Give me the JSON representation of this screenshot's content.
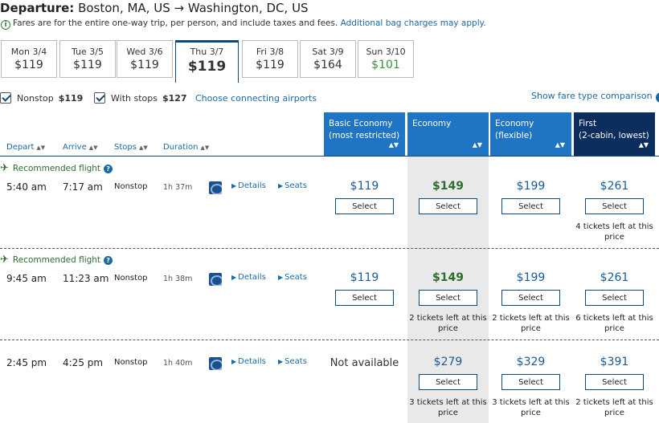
{
  "header": {
    "label": "Departure:",
    "route": "Boston, MA, US → Washington, DC, US",
    "note": "Fares are for the entire one-way trip, per person, and include taxes and fees.",
    "note_link": "Additional bag charges may apply."
  },
  "dates": [
    {
      "day": "Mon 3/4",
      "price": "$119"
    },
    {
      "day": "Tue 3/5",
      "price": "$119"
    },
    {
      "day": "Wed 3/6",
      "price": "$119"
    },
    {
      "day": "Thu 3/7",
      "price": "$119"
    },
    {
      "day": "Fri 3/8",
      "price": "$119"
    },
    {
      "day": "Sat 3/9",
      "price": "$164"
    },
    {
      "day": "Sun 3/10",
      "price": "$101"
    }
  ],
  "filters": {
    "nonstop_label": "Nonstop",
    "nonstop_price": "$119",
    "withstops_label": "With stops",
    "withstops_price": "$127",
    "connecting_link": "Choose connecting airports",
    "compare_link": "Show fare type comparison"
  },
  "columns": {
    "depart": "Depart",
    "arrive": "Arrive",
    "stops": "Stops",
    "duration": "Duration"
  },
  "fares": [
    {
      "line1": "Basic Economy",
      "line2": "(most restricted)"
    },
    {
      "line1": "Economy",
      "line2": ""
    },
    {
      "line1": "Economy",
      "line2": "(flexible)"
    },
    {
      "line1": "First",
      "line2": "(2-cabin, lowest)"
    }
  ],
  "recommended_label": "Recommended flight",
  "details_label": "Details",
  "seats_label": "Seats",
  "select_label": "Select",
  "flights": [
    {
      "depart": "5:40 am",
      "arrive": "7:17 am",
      "stops": "Nonstop",
      "duration": "1h 37m",
      "basic": "$119",
      "economy": "$149",
      "flexible": "$199",
      "first": "$261",
      "first_left_1": "4 tickets left at this",
      "first_left_2": "price"
    },
    {
      "depart": "9:45 am",
      "arrive": "11:23 am",
      "stops": "Nonstop",
      "duration": "1h 38m",
      "basic": "$119",
      "economy": "$149",
      "flexible": "$199",
      "first": "$261",
      "eco_left_1": "2 tickets left at this",
      "eco_left_2": "price",
      "flex_left_1": "2 tickets left at this",
      "flex_left_2": "price",
      "first_left_1": "6 tickets left at this",
      "first_left_2": "price"
    },
    {
      "depart": "2:45 pm",
      "arrive": "4:25 pm",
      "stops": "Nonstop",
      "duration": "1h 40m",
      "basic": "Not available",
      "economy": "$279",
      "flexible": "$329",
      "first": "$391",
      "eco_left_1": "3 tickets left at this",
      "eco_left_2": "price",
      "flex_left_1": "3 tickets left at this",
      "flex_left_2": "price",
      "first_left_1": "2 tickets left at this",
      "first_left_2": "price"
    }
  ],
  "colors": {
    "accent": "#1f75c4",
    "first": "#0c2e5c",
    "green": "#2e6e2e"
  }
}
